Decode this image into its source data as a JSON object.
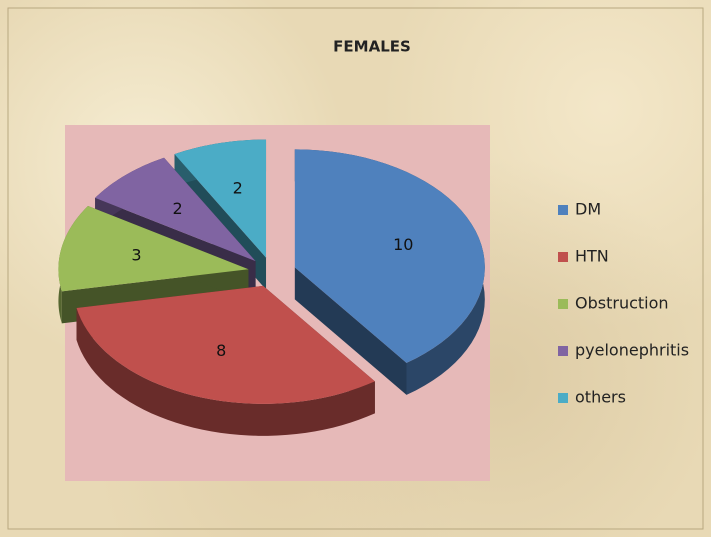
{
  "chart_data": {
    "type": "pie",
    "title": "FEMALES",
    "categories": [
      "DM",
      "HTN",
      "Obstruction",
      "pyelonephritis",
      "others"
    ],
    "values": [
      10,
      8,
      3,
      2,
      2
    ],
    "colors": [
      "#4f81bd",
      "#c0504d",
      "#9bbb59",
      "#8064a2",
      "#4bacc6"
    ],
    "legend": "right"
  }
}
